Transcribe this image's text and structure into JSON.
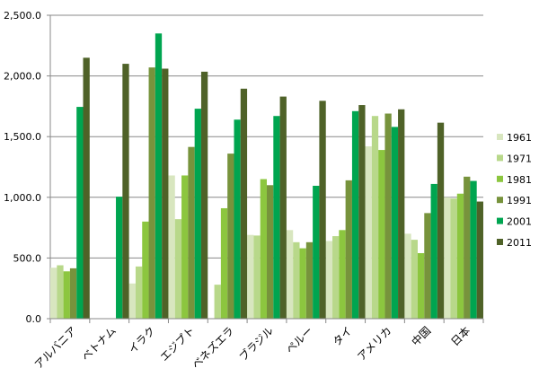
{
  "chart_data": {
    "type": "bar",
    "categories": [
      "アルバニア",
      "ベトナム",
      "イラク",
      "エジプト",
      "ベネズエラ",
      "ブラジル",
      "ペルー",
      "タイ",
      "アメリカ",
      "中国",
      "日本"
    ],
    "ylim": [
      0,
      2500
    ],
    "yticks": [
      "0.0",
      "500.0",
      "1,000.0",
      "1,500.0",
      "2,000.0",
      "2,500.0"
    ],
    "ytick_values": [
      0,
      500,
      1000,
      1500,
      2000,
      2500
    ],
    "grid": true,
    "legend_position": "right",
    "series": [
      {
        "name": "1961",
        "color": "#d8e6bf",
        "values": [
          420,
          null,
          290,
          1180,
          null,
          690,
          730,
          640,
          1420,
          700,
          1000
        ]
      },
      {
        "name": "1971",
        "color": "#b8d88a",
        "values": [
          440,
          null,
          430,
          820,
          280,
          685,
          630,
          680,
          1670,
          650,
          990
        ]
      },
      {
        "name": "1981",
        "color": "#8cc63f",
        "values": [
          390,
          null,
          800,
          1180,
          910,
          1150,
          580,
          730,
          1390,
          540,
          1030
        ]
      },
      {
        "name": "1991",
        "color": "#77933c",
        "values": [
          415,
          null,
          2070,
          1415,
          1360,
          1100,
          630,
          1140,
          1690,
          870,
          1170
        ]
      },
      {
        "name": "2001",
        "color": "#00a550",
        "values": [
          1745,
          1005,
          2350,
          1730,
          1640,
          1670,
          1095,
          1710,
          1580,
          1110,
          1135
        ]
      },
      {
        "name": "2011",
        "color": "#4f6228",
        "values": [
          2150,
          2100,
          2060,
          2035,
          1895,
          1830,
          1795,
          1760,
          1725,
          1615,
          965
        ]
      }
    ]
  }
}
